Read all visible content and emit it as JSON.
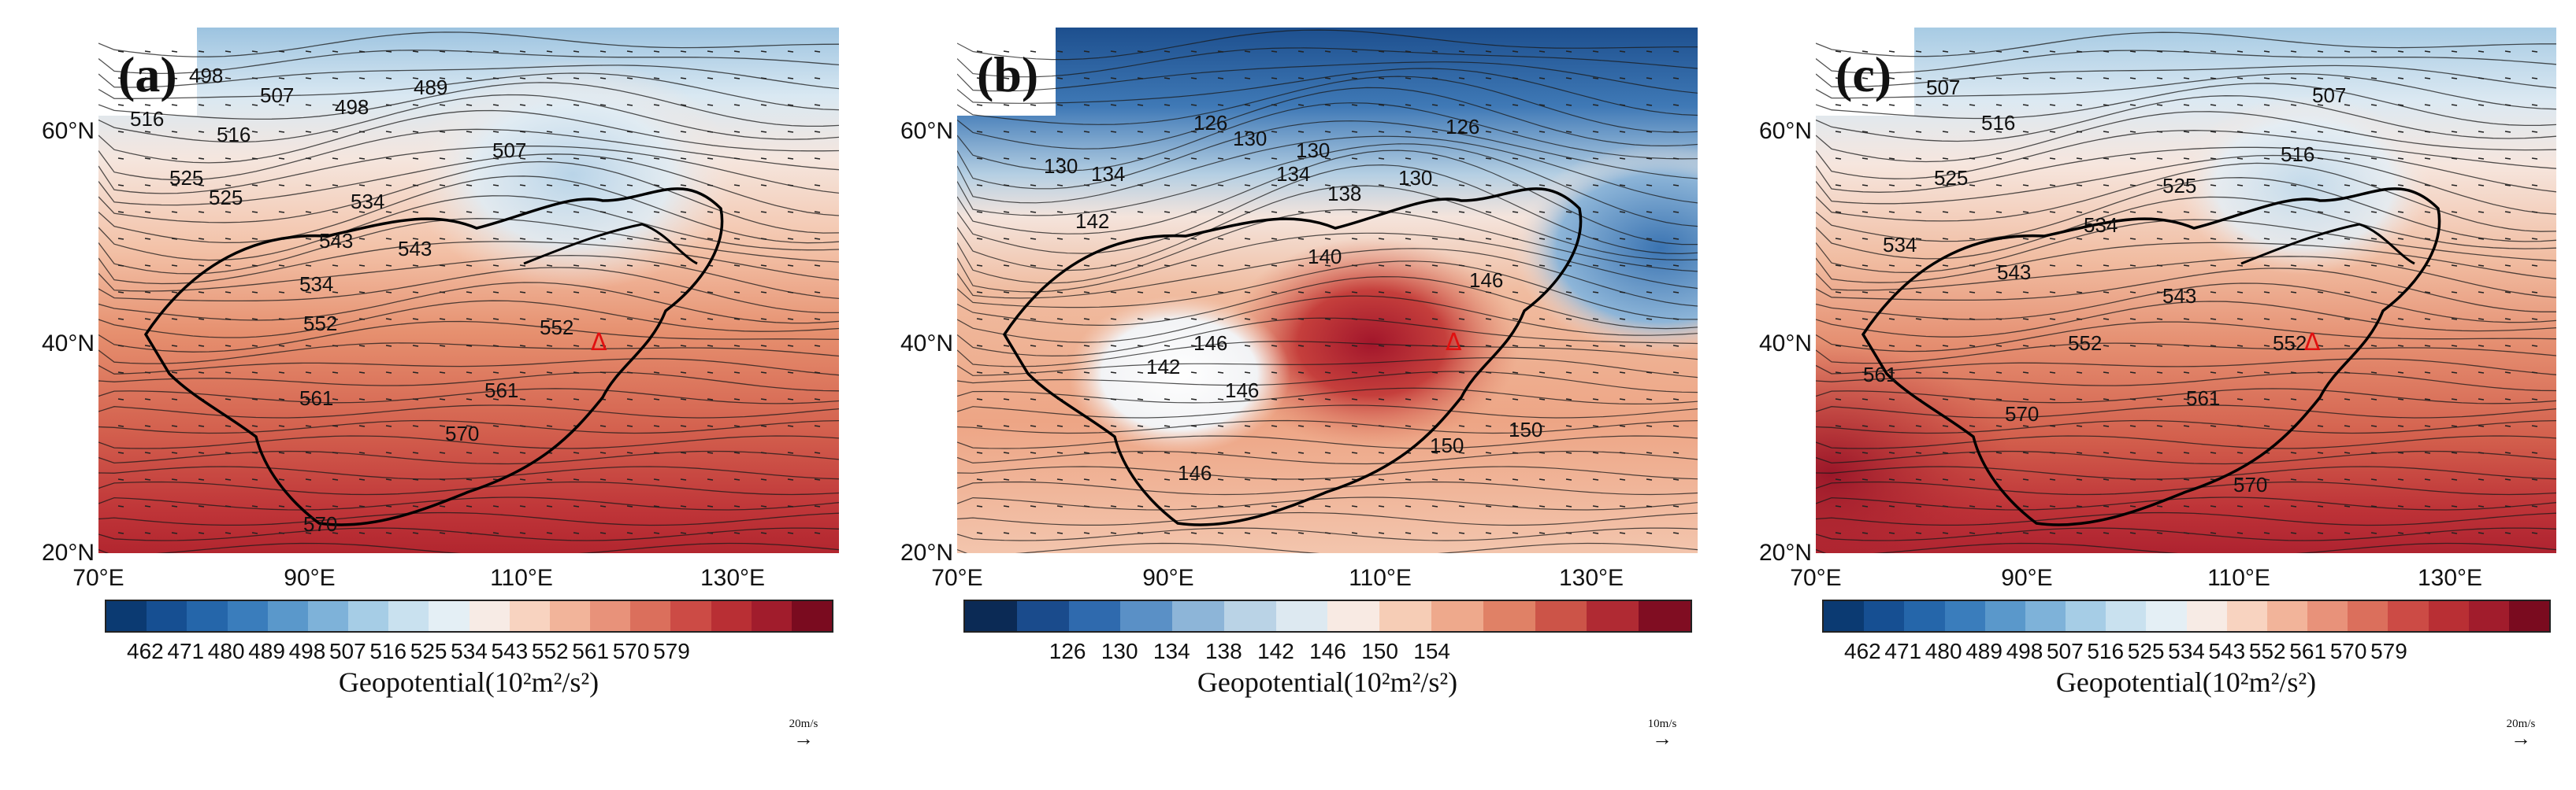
{
  "figure": {
    "panels": [
      {
        "label": "(a)",
        "lat_labels": [
          "60°N",
          "40°N",
          "20°N"
        ],
        "lon_labels": [
          "70°E",
          "90°E",
          "110°E",
          "130°E"
        ],
        "contour_labels": [
          "498",
          "507",
          "498",
          "489",
          "516",
          "516",
          "507",
          "525",
          "525",
          "534",
          "543",
          "543",
          "534",
          "552",
          "552",
          "561",
          "561",
          "570",
          "570"
        ],
        "colorbar_ticks": [
          "462",
          "471",
          "480",
          "489",
          "498",
          "507",
          "516",
          "525",
          "534",
          "543",
          "552",
          "561",
          "570",
          "579"
        ],
        "colorbar_title": "Geopotential(10²m²/s²)",
        "ref_vector": "20m/s",
        "palette": [
          "#0b3a72",
          "#164f92",
          "#2566aa",
          "#3a7dbc",
          "#5a98cb",
          "#7eb2d9",
          "#a6cde6",
          "#c9e1ef",
          "#e4eff5",
          "#f7ebe5",
          "#f8d3c0",
          "#f2b49a",
          "#e8927a",
          "#db6f5c",
          "#cc4b45",
          "#b92f34",
          "#a11c2c",
          "#7a0b1f"
        ]
      },
      {
        "label": "(b)",
        "lat_labels": [
          "60°N",
          "40°N",
          "20°N"
        ],
        "lon_labels": [
          "70°E",
          "90°E",
          "110°E",
          "130°E"
        ],
        "contour_labels": [
          "126",
          "130",
          "130",
          "134",
          "130",
          "138",
          "126",
          "130",
          "134",
          "142",
          "140",
          "146",
          "142",
          "146",
          "146",
          "150",
          "150",
          "146"
        ],
        "colorbar_ticks": [
          "126",
          "130",
          "134",
          "138",
          "142",
          "146",
          "150",
          "154"
        ],
        "colorbar_title": "Geopotential(10²m²/s²)",
        "ref_vector": "10m/s",
        "palette": [
          "#0b2a55",
          "#1a4b8c",
          "#2f6aae",
          "#5a90c6",
          "#8db5d8",
          "#bad3e6",
          "#dde9f1",
          "#f8eae3",
          "#f6cdb6",
          "#eea98c",
          "#e08166",
          "#cc5448",
          "#b02a33",
          "#800d22"
        ]
      },
      {
        "label": "(c)",
        "lat_labels": [
          "60°N",
          "40°N",
          "20°N"
        ],
        "lon_labels": [
          "70°E",
          "90°E",
          "110°E",
          "130°E"
        ],
        "contour_labels": [
          "507",
          "507",
          "516",
          "516",
          "525",
          "525",
          "534",
          "534",
          "543",
          "543",
          "552",
          "552",
          "561",
          "561",
          "570",
          "570"
        ],
        "colorbar_ticks": [
          "462",
          "471",
          "480",
          "489",
          "498",
          "507",
          "516",
          "525",
          "534",
          "543",
          "552",
          "561",
          "570",
          "579"
        ],
        "colorbar_title": "Geopotential(10²m²/s²)",
        "ref_vector": "20m/s",
        "palette": [
          "#0b3a72",
          "#164f92",
          "#2566aa",
          "#3a7dbc",
          "#5a98cb",
          "#7eb2d9",
          "#a6cde6",
          "#c9e1ef",
          "#e4eff5",
          "#f7ebe5",
          "#f8d3c0",
          "#f2b49a",
          "#e8927a",
          "#db6f5c",
          "#cc4b45",
          "#b92f34",
          "#a11c2c",
          "#7a0b1f"
        ]
      }
    ],
    "marker_symbol": "Δ",
    "marker_color": "#e01010"
  }
}
